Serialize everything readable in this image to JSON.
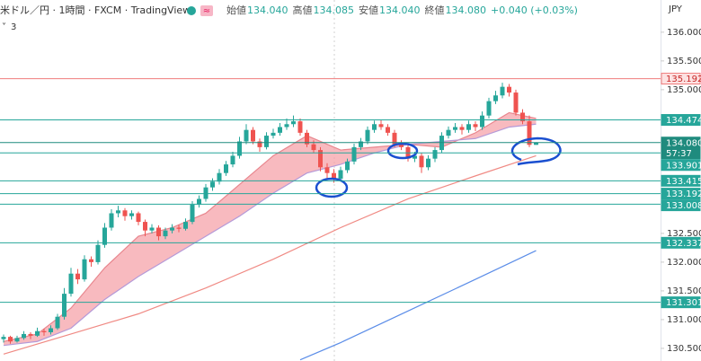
{
  "chart_data": {
    "type": "candlestick",
    "title": "米ドル／円 · 1時間 · FXCM · TradingView",
    "ohlc_header": [
      {
        "label": "始値",
        "value": "134.040"
      },
      {
        "label": "高値",
        "value": "134.085"
      },
      {
        "label": "安値",
        "value": "134.040"
      },
      {
        "label": "終値",
        "value": "134.080"
      }
    ],
    "change": "+0.040 (+0.03%)",
    "indicator_count": "3",
    "currency": "JPY",
    "up_color": "#26a69a",
    "down_color": "#ef5350",
    "ohlc": [
      [
        130.66,
        130.74,
        130.6,
        130.7
      ],
      [
        130.7,
        130.72,
        130.58,
        130.62
      ],
      [
        130.62,
        130.72,
        130.6,
        130.68
      ],
      [
        130.68,
        130.8,
        130.65,
        130.75
      ],
      [
        130.75,
        130.78,
        130.66,
        130.72
      ],
      [
        130.72,
        130.86,
        130.7,
        130.8
      ],
      [
        130.8,
        130.84,
        130.72,
        130.78
      ],
      [
        130.78,
        130.9,
        130.74,
        130.85
      ],
      [
        130.85,
        131.1,
        130.82,
        131.05
      ],
      [
        131.05,
        131.55,
        131.0,
        131.45
      ],
      [
        131.45,
        131.9,
        131.4,
        131.8
      ],
      [
        131.8,
        131.88,
        131.62,
        131.7
      ],
      [
        131.7,
        132.12,
        131.66,
        132.05
      ],
      [
        132.05,
        132.1,
        131.92,
        132.0
      ],
      [
        132.0,
        132.38,
        131.96,
        132.3
      ],
      [
        132.3,
        132.68,
        132.25,
        132.6
      ],
      [
        132.6,
        132.92,
        132.55,
        132.85
      ],
      [
        132.85,
        132.98,
        132.78,
        132.9
      ],
      [
        132.9,
        132.94,
        132.72,
        132.8
      ],
      [
        132.8,
        132.9,
        132.74,
        132.85
      ],
      [
        132.85,
        132.88,
        132.64,
        132.7
      ],
      [
        132.7,
        132.74,
        132.45,
        132.55
      ],
      [
        132.55,
        132.66,
        132.5,
        132.6
      ],
      [
        132.6,
        132.64,
        132.38,
        132.45
      ],
      [
        132.45,
        132.6,
        132.4,
        132.55
      ],
      [
        132.55,
        132.66,
        132.5,
        132.6
      ],
      [
        132.6,
        132.65,
        132.52,
        132.58
      ],
      [
        132.58,
        132.76,
        132.55,
        132.7
      ],
      [
        132.7,
        133.06,
        132.66,
        133.0
      ],
      [
        133.0,
        133.16,
        132.95,
        133.1
      ],
      [
        133.1,
        133.36,
        133.05,
        133.3
      ],
      [
        133.3,
        133.46,
        133.24,
        133.4
      ],
      [
        133.4,
        133.62,
        133.35,
        133.55
      ],
      [
        133.55,
        133.76,
        133.5,
        133.7
      ],
      [
        133.7,
        133.92,
        133.65,
        133.85
      ],
      [
        133.85,
        134.18,
        133.8,
        134.1
      ],
      [
        134.1,
        134.4,
        134.05,
        134.3
      ],
      [
        134.3,
        134.35,
        134.05,
        134.1
      ],
      [
        134.1,
        134.15,
        133.92,
        134.0
      ],
      [
        134.0,
        134.26,
        133.96,
        134.2
      ],
      [
        134.2,
        134.32,
        134.15,
        134.25
      ],
      [
        134.25,
        134.42,
        134.2,
        134.35
      ],
      [
        134.35,
        134.5,
        134.3,
        134.4
      ],
      [
        134.4,
        134.55,
        134.35,
        134.45
      ],
      [
        134.45,
        134.5,
        134.2,
        134.25
      ],
      [
        134.25,
        134.3,
        134.0,
        134.05
      ],
      [
        134.05,
        134.12,
        133.9,
        133.95
      ],
      [
        133.95,
        134.0,
        133.58,
        133.65
      ],
      [
        133.65,
        133.72,
        133.45,
        133.55
      ],
      [
        133.55,
        133.62,
        133.38,
        133.45
      ],
      [
        133.45,
        133.66,
        133.4,
        133.6
      ],
      [
        133.6,
        133.8,
        133.55,
        133.75
      ],
      [
        133.75,
        134.06,
        133.7,
        134.0
      ],
      [
        134.0,
        134.16,
        133.95,
        134.1
      ],
      [
        134.1,
        134.36,
        134.05,
        134.3
      ],
      [
        134.3,
        134.46,
        134.25,
        134.4
      ],
      [
        134.4,
        134.48,
        134.3,
        134.35
      ],
      [
        134.35,
        134.4,
        134.2,
        134.25
      ],
      [
        134.25,
        134.3,
        134.0,
        134.05
      ],
      [
        134.05,
        134.12,
        133.95,
        134.0
      ],
      [
        134.0,
        134.05,
        133.75,
        133.8
      ],
      [
        133.8,
        133.92,
        133.74,
        133.85
      ],
      [
        133.85,
        133.9,
        133.55,
        133.65
      ],
      [
        133.65,
        133.86,
        133.6,
        133.8
      ],
      [
        133.8,
        134.0,
        133.74,
        133.95
      ],
      [
        133.95,
        134.26,
        133.9,
        134.2
      ],
      [
        134.2,
        134.36,
        134.15,
        134.3
      ],
      [
        134.3,
        134.42,
        134.25,
        134.35
      ],
      [
        134.35,
        134.4,
        134.22,
        134.3
      ],
      [
        134.3,
        134.46,
        134.25,
        134.4
      ],
      [
        134.4,
        134.45,
        134.28,
        134.35
      ],
      [
        134.35,
        134.62,
        134.3,
        134.55
      ],
      [
        134.55,
        134.86,
        134.5,
        134.8
      ],
      [
        134.8,
        134.98,
        134.75,
        134.9
      ],
      [
        134.9,
        135.12,
        134.85,
        135.05
      ],
      [
        135.05,
        135.1,
        134.88,
        134.95
      ],
      [
        134.95,
        135.0,
        134.55,
        134.6
      ],
      [
        134.6,
        134.66,
        134.4,
        134.45
      ],
      [
        134.45,
        134.55,
        134.0,
        134.04
      ],
      [
        134.04,
        134.085,
        134.04,
        134.08
      ]
    ],
    "ribbon_color": "#f5a3aa",
    "lines": [
      {
        "color": "#e8868e",
        "x": [
          0,
          5,
          10,
          15,
          20,
          25,
          30,
          35,
          40,
          45,
          50,
          55,
          60,
          65,
          70,
          75,
          79
        ],
        "values": [
          130.62,
          130.75,
          131.2,
          131.9,
          132.45,
          132.6,
          132.85,
          133.35,
          133.85,
          134.2,
          133.95,
          134.0,
          134.05,
          134.0,
          134.25,
          134.6,
          134.5
        ]
      },
      {
        "color": "#b59ad8",
        "x": [
          0,
          5,
          10,
          15,
          20,
          25,
          30,
          35,
          40,
          45,
          50,
          55,
          60,
          65,
          70,
          75,
          79
        ],
        "values": [
          130.55,
          130.62,
          130.85,
          131.35,
          131.75,
          132.1,
          132.45,
          132.8,
          133.2,
          133.55,
          133.7,
          133.9,
          134.05,
          134.1,
          134.15,
          134.35,
          134.4
        ]
      },
      {
        "color": "#f08a84",
        "x": [
          0,
          10,
          20,
          30,
          40,
          50,
          60,
          70,
          79
        ],
        "values": [
          130.4,
          130.75,
          131.1,
          131.55,
          132.05,
          132.6,
          133.1,
          133.5,
          133.85
        ]
      },
      {
        "color": "#5b8de8",
        "x": [
          44,
          50,
          60,
          70,
          79
        ],
        "values": [
          130.3,
          130.6,
          131.15,
          131.7,
          132.2
        ]
      }
    ],
    "price_lines": [
      {
        "value": 135.192,
        "color": "#f07b7b"
      },
      {
        "value": 134.474,
        "color": "#26a69a"
      },
      {
        "value": {
          "value": 134.08,
          "label": "134.080"
        },
        "sub": "57:37",
        "color": "#1f8b7e"
      },
      {
        "value": 133.901,
        "color": "#26a69a"
      },
      {
        "value": 133.415,
        "color": "#26a69a"
      },
      {
        "value": 133.192,
        "color": "#26a69a"
      },
      {
        "value": 133.008,
        "color": "#26a69a"
      },
      {
        "value": 132.337,
        "color": "#26a69a"
      },
      {
        "value": 131.301,
        "color": "#26a69a"
      }
    ],
    "ylim": [
      130.28,
      136.56
    ],
    "yticks": [
      {
        "value": 136,
        "label": "136.000"
      },
      {
        "value": 135.5,
        "label": "135.500"
      },
      {
        "value": 135,
        "label": "135.000"
      },
      {
        "value": 132.5,
        "label": "132.500"
      },
      {
        "value": 132,
        "label": "132.000"
      },
      {
        "value": 131.5,
        "label": "131.500"
      },
      {
        "value": 131,
        "label": "131.000"
      },
      {
        "value": 130.5,
        "label": "130.500"
      }
    ]
  }
}
